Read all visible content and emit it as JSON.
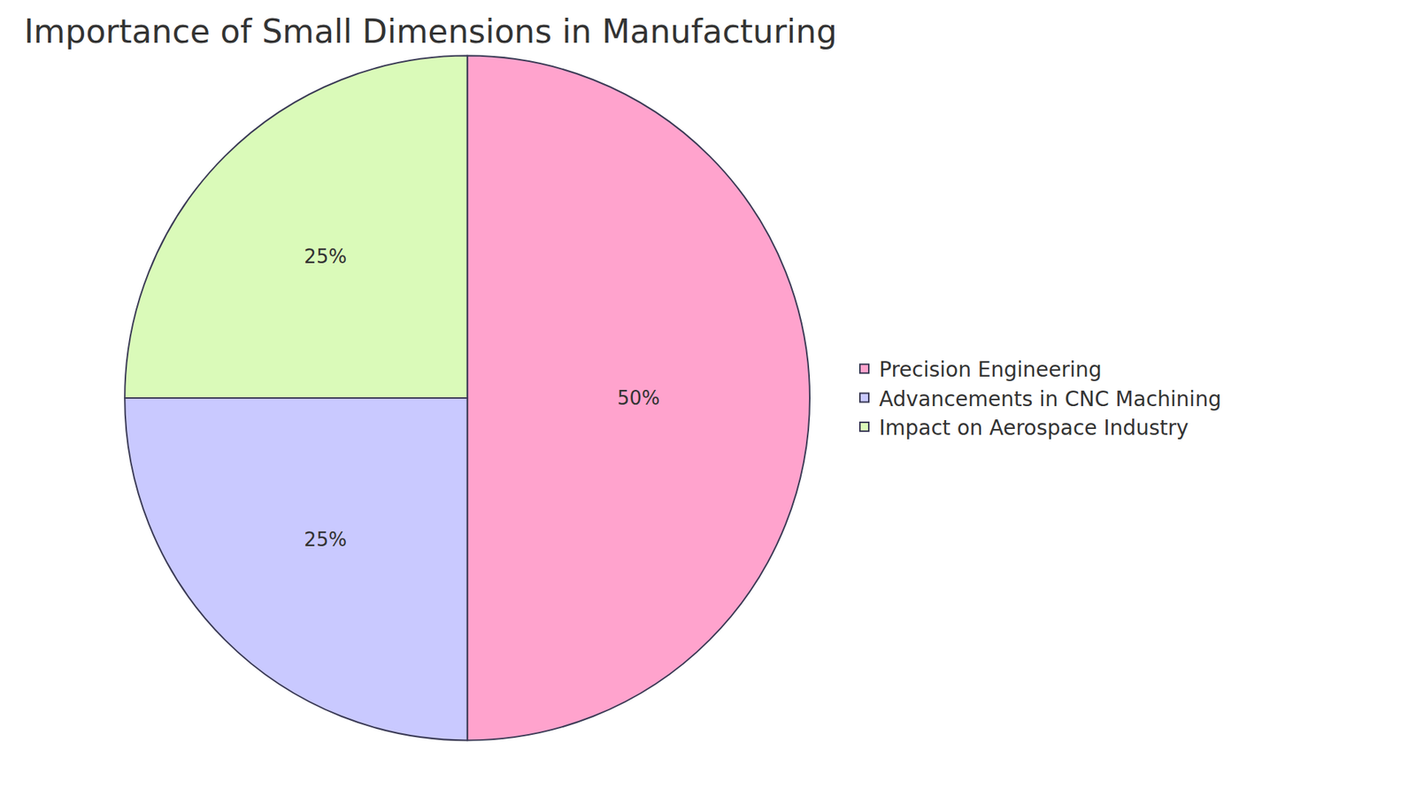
{
  "chart_data": {
    "type": "pie",
    "title": "Importance of Small Dimensions in Manufacturing",
    "categories": [
      "Precision Engineering",
      "Advancements in CNC Machining",
      "Impact on Aerospace Industry"
    ],
    "values": [
      50,
      25,
      25
    ],
    "value_labels": [
      "50%",
      "25%",
      "25%"
    ],
    "colors": [
      "#ffa3cd",
      "#c9c9ff",
      "#dafab9"
    ],
    "data_labels": true,
    "legend": "right"
  }
}
